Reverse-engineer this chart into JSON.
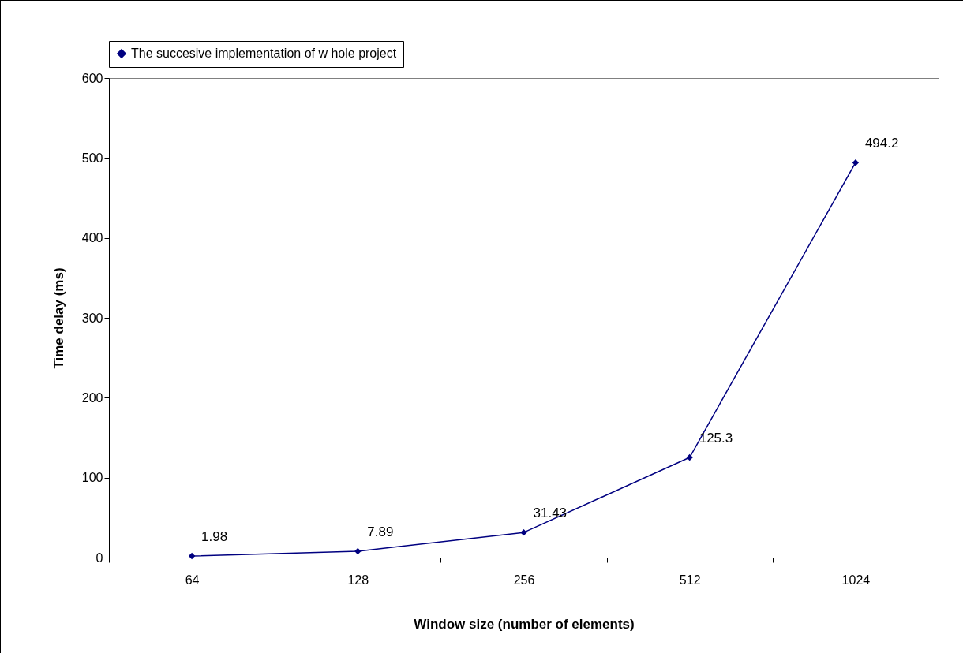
{
  "chart_data": {
    "type": "line",
    "xlabel": "Window size (number of elements)",
    "ylabel": "Time delay (ms)",
    "categories": [
      "64",
      "128",
      "256",
      "512",
      "1024"
    ],
    "series": [
      {
        "name": "The succesive implementation of w hole project",
        "color": "#000080",
        "values": [
          1.98,
          7.89,
          31.43,
          125.3,
          494.2
        ]
      }
    ],
    "ylim": [
      0,
      600
    ],
    "yticks": [
      0,
      100,
      200,
      300,
      400,
      500,
      600
    ],
    "grid": false,
    "legend": "top",
    "marker": "diamond",
    "line_style": "solid",
    "data_labels": true
  }
}
